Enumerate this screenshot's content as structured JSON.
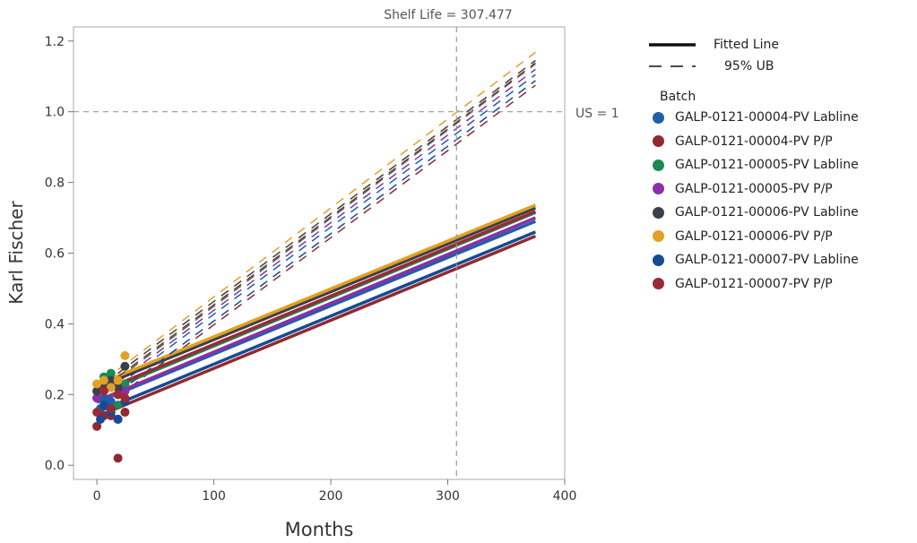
{
  "chart_data": {
    "type": "line",
    "title": "",
    "xlabel": "Months",
    "ylabel": "Karl Fischer",
    "xlim": [
      -20,
      400
    ],
    "ylim": [
      -0.04,
      1.24
    ],
    "xticks": [
      0,
      100,
      200,
      300,
      400
    ],
    "yticks": [
      0.0,
      0.2,
      0.4,
      0.6,
      0.8,
      1.0,
      1.2
    ],
    "x_tick_labels": [
      "0",
      "100",
      "200",
      "300",
      "400"
    ],
    "y_tick_labels": [
      "0.0",
      "0.2",
      "0.4",
      "0.6",
      "0.8",
      "1.0",
      "1.2"
    ],
    "grid": false,
    "legend_position": "right",
    "reference_lines": {
      "shelf_life": {
        "x": 307.477,
        "label": "Shelf Life = 307.477"
      },
      "spec_limit": {
        "y": 1.0,
        "label": "US = 1"
      }
    },
    "line_style_legend": [
      {
        "style": "solid",
        "label": "Fitted Line"
      },
      {
        "style": "dashed",
        "label": "95% UB"
      }
    ],
    "batch_legend_title": "Batch",
    "series": [
      {
        "name": "GALP-0121-00004-PV Labline",
        "color": "#1f5fa8",
        "fit_x": [
          0,
          375
        ],
        "fit_y": [
          0.178,
          0.69
        ],
        "ub_x": [
          18,
          375
        ],
        "ub_y": [
          0.225,
          1.105
        ],
        "points": [
          [
            3,
            0.16
          ],
          [
            6,
            0.19
          ],
          [
            12,
            0.18
          ],
          [
            18,
            0.13
          ],
          [
            24,
            0.21
          ]
        ]
      },
      {
        "name": "GALP-0121-00004-PV P/P",
        "color": "#8f2a31",
        "fit_x": [
          0,
          375
        ],
        "fit_y": [
          0.138,
          0.648
        ],
        "ub_x": [
          18,
          375
        ],
        "ub_y": [
          0.195,
          1.075
        ],
        "points": [
          [
            0,
            0.11
          ],
          [
            6,
            0.14
          ],
          [
            12,
            0.14
          ],
          [
            18,
            0.02
          ],
          [
            24,
            0.15
          ]
        ]
      },
      {
        "name": "GALP-0121-00005-PV Labline",
        "color": "#1b8a54",
        "fit_x": [
          0,
          375
        ],
        "fit_y": [
          0.2,
          0.715
        ],
        "ub_x": [
          18,
          375
        ],
        "ub_y": [
          0.245,
          1.135
        ],
        "points": [
          [
            0,
            0.19
          ],
          [
            6,
            0.25
          ],
          [
            12,
            0.26
          ],
          [
            18,
            0.17
          ],
          [
            24,
            0.23
          ]
        ]
      },
      {
        "name": "GALP-0121-00005-PV P/P",
        "color": "#8b2fa8",
        "fit_x": [
          0,
          375
        ],
        "fit_y": [
          0.182,
          0.7
        ],
        "ub_x": [
          18,
          375
        ],
        "ub_y": [
          0.235,
          1.12
        ],
        "points": [
          [
            0,
            0.19
          ],
          [
            6,
            0.22
          ],
          [
            12,
            0.22
          ],
          [
            18,
            0.2
          ],
          [
            24,
            0.21
          ]
        ]
      },
      {
        "name": "GALP-0121-00006-PV Labline",
        "color": "#3a3f4c",
        "fit_x": [
          0,
          375
        ],
        "fit_y": [
          0.22,
          0.728
        ],
        "ub_x": [
          18,
          375
        ],
        "ub_y": [
          0.26,
          1.145
        ],
        "points": [
          [
            0,
            0.21
          ],
          [
            6,
            0.23
          ],
          [
            12,
            0.24
          ],
          [
            18,
            0.22
          ],
          [
            24,
            0.28
          ]
        ]
      },
      {
        "name": "GALP-0121-00006-PV P/P",
        "color": "#e2a024",
        "fit_x": [
          0,
          375
        ],
        "fit_y": [
          0.228,
          0.736
        ],
        "ub_x": [
          18,
          375
        ],
        "ub_y": [
          0.27,
          1.168
        ],
        "points": [
          [
            0,
            0.23
          ],
          [
            6,
            0.24
          ],
          [
            12,
            0.22
          ],
          [
            18,
            0.24
          ],
          [
            24,
            0.31
          ]
        ]
      },
      {
        "name": "GALP-0121-00007-PV Labline",
        "color": "#174a94",
        "fit_x": [
          0,
          375
        ],
        "fit_y": [
          0.15,
          0.66
        ],
        "ub_x": [
          18,
          375
        ],
        "ub_y": [
          0.205,
          1.088
        ],
        "points": [
          [
            3,
            0.13
          ],
          [
            6,
            0.17
          ],
          [
            12,
            0.15
          ],
          [
            18,
            0.13
          ],
          [
            24,
            0.18
          ]
        ]
      },
      {
        "name": "GALP-0121-00007-PV P/P",
        "color": "#9a2a35",
        "fit_x": [
          0,
          375
        ],
        "fit_y": [
          0.205,
          0.718
        ],
        "ub_x": [
          18,
          375
        ],
        "ub_y": [
          0.25,
          1.138
        ],
        "points": [
          [
            0,
            0.15
          ],
          [
            6,
            0.21
          ],
          [
            12,
            0.16
          ],
          [
            18,
            0.2
          ],
          [
            24,
            0.19
          ]
        ]
      }
    ]
  }
}
